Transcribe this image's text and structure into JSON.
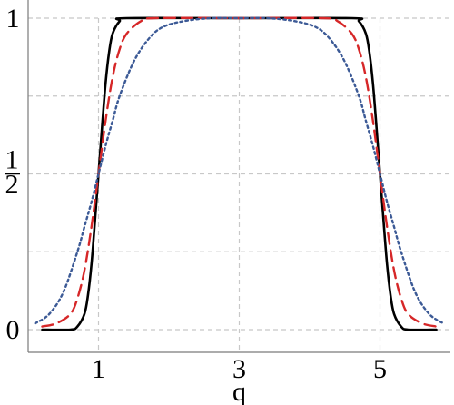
{
  "chart_data": {
    "type": "line",
    "title": "",
    "xlabel": "q",
    "ylabel": "",
    "xlim": [
      0,
      6
    ],
    "ylim": [
      0,
      1
    ],
    "x_ticks": [
      {
        "value": 1,
        "label": "1"
      },
      {
        "value": 3,
        "label": "3"
      },
      {
        "value": 5,
        "label": "5"
      }
    ],
    "y_ticks": [
      {
        "value": 0,
        "label": "0"
      },
      {
        "value": 0.5,
        "label_num": "1",
        "label_den": "2"
      },
      {
        "value": 1,
        "label": "1"
      }
    ],
    "x_grid": [
      1,
      3,
      5
    ],
    "y_grid": [
      0,
      0.25,
      0.5,
      0.75,
      1
    ],
    "grid": true,
    "legend": "none",
    "series": [
      {
        "style": "solid",
        "color": "#000000",
        "x": [
          0.2,
          0.6,
          0.7,
          0.8,
          0.85,
          0.9,
          0.95,
          1.0,
          1.05,
          1.1,
          1.15,
          1.2,
          1.3,
          1.4,
          3.0,
          4.6,
          4.7,
          4.8,
          4.85,
          4.9,
          4.95,
          5.0,
          5.05,
          5.1,
          5.15,
          5.2,
          5.3,
          5.4,
          5.8
        ],
        "y": [
          0.0,
          0.0,
          0.01,
          0.05,
          0.11,
          0.21,
          0.35,
          0.5,
          0.65,
          0.79,
          0.89,
          0.95,
          0.99,
          1.0,
          1.0,
          1.0,
          0.99,
          0.95,
          0.89,
          0.79,
          0.65,
          0.5,
          0.35,
          0.21,
          0.11,
          0.05,
          0.01,
          0.0,
          0.0
        ]
      },
      {
        "style": "dashed",
        "color": "#d62728",
        "x": [
          0.2,
          0.4,
          0.6,
          0.7,
          0.8,
          0.9,
          1.0,
          1.1,
          1.2,
          1.3,
          1.4,
          1.6,
          1.8,
          3.0,
          4.2,
          4.4,
          4.6,
          4.7,
          4.8,
          4.9,
          5.0,
          5.1,
          5.2,
          5.3,
          5.4,
          5.6,
          5.8
        ],
        "y": [
          0.01,
          0.02,
          0.05,
          0.1,
          0.19,
          0.33,
          0.5,
          0.67,
          0.81,
          0.9,
          0.95,
          0.99,
          1.0,
          1.0,
          1.0,
          0.99,
          0.95,
          0.9,
          0.81,
          0.67,
          0.5,
          0.33,
          0.19,
          0.1,
          0.05,
          0.02,
          0.01
        ]
      },
      {
        "style": "dotted",
        "color": "#3c5a96",
        "x": [
          0.1,
          0.3,
          0.5,
          0.7,
          0.8,
          0.9,
          1.0,
          1.1,
          1.2,
          1.3,
          1.5,
          1.7,
          1.9,
          2.2,
          2.6,
          3.0,
          3.4,
          3.8,
          4.1,
          4.3,
          4.5,
          4.7,
          4.8,
          4.9,
          5.0,
          5.1,
          5.2,
          5.3,
          5.5,
          5.7,
          5.9
        ],
        "y": [
          0.02,
          0.05,
          0.12,
          0.25,
          0.33,
          0.41,
          0.5,
          0.59,
          0.67,
          0.75,
          0.86,
          0.93,
          0.97,
          0.99,
          1.0,
          1.0,
          1.0,
          0.99,
          0.97,
          0.93,
          0.86,
          0.75,
          0.67,
          0.59,
          0.5,
          0.41,
          0.33,
          0.25,
          0.12,
          0.05,
          0.02
        ]
      }
    ]
  }
}
